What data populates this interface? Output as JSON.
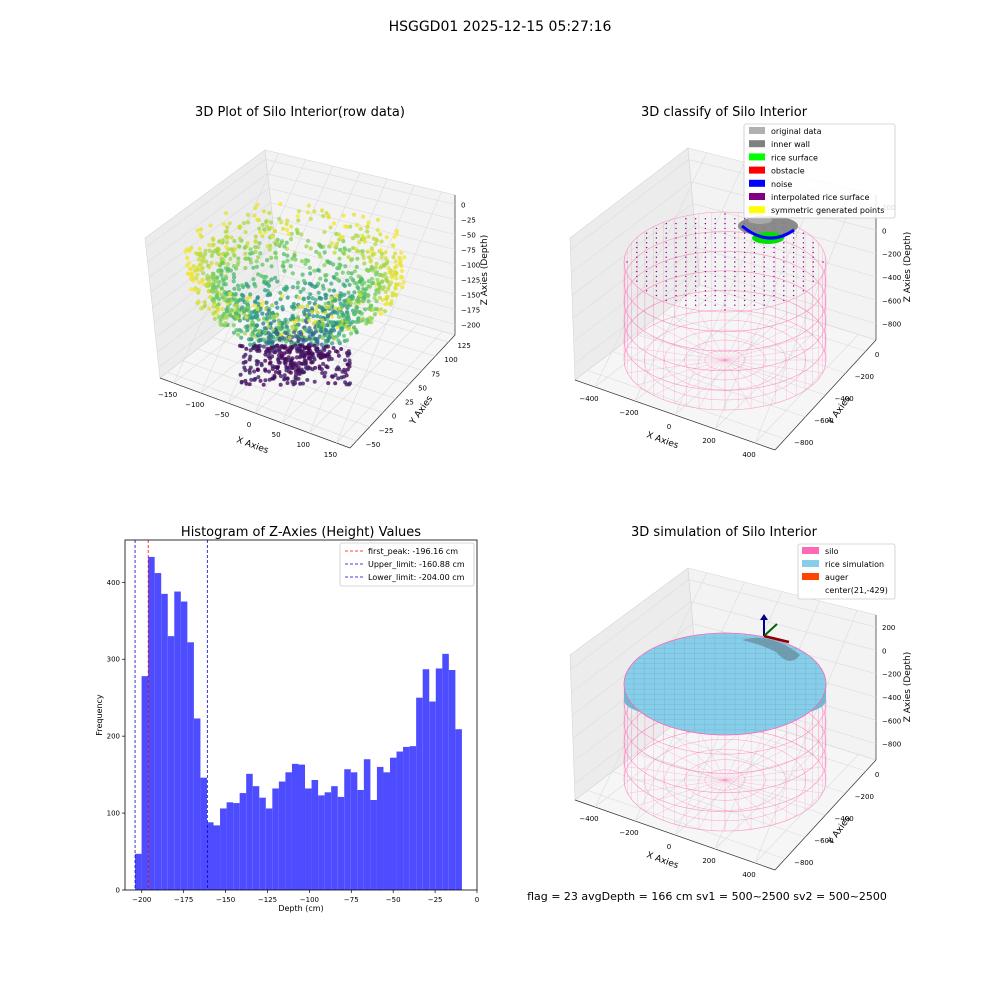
{
  "figure": {
    "suptitle": "HSGGD01 2025-12-15 05:27:16",
    "footer": "flag = 23  avgDepth = 166 cm  sv1 = 500~2500  sv2 = 500~2500"
  },
  "chart_data": [
    {
      "type": "scatter",
      "title": "3D Plot of Silo Interior(row data)",
      "xlabel": "X Axies",
      "ylabel": "Y Axies",
      "zlabel": "Z Axies (Depth)",
      "xticks": [
        "−150",
        "−100",
        "−50",
        "0",
        "50",
        "100",
        "150"
      ],
      "yticks": [
        "−50",
        "−25",
        "0",
        "25",
        "50",
        "75",
        "100",
        "125"
      ],
      "zticks": [
        "0",
        "−25",
        "−50",
        "−75",
        "−100",
        "−125",
        "−150",
        "−175",
        "−200"
      ],
      "colormap": "viridis",
      "grid": true
    },
    {
      "type": "scatter",
      "title": "3D classify of Silo Interior",
      "xlabel": "X Axies",
      "ylabel": "Y Axies",
      "zlabel": "Z Axies (Depth)",
      "xticks": [
        "−400",
        "−200",
        "0",
        "200",
        "400"
      ],
      "yticks": [
        "−800",
        "−600",
        "−400",
        "−200",
        "0"
      ],
      "zticks": [
        "200",
        "0",
        "−200",
        "−400",
        "−600",
        "−800"
      ],
      "legend_position": "top-right",
      "legend": [
        {
          "label": "original data",
          "color": "#b0b0b0"
        },
        {
          "label": "inner wall",
          "color": "#808080"
        },
        {
          "label": "rice surface",
          "color": "#00ff00"
        },
        {
          "label": "obstacle",
          "color": "#ff0000"
        },
        {
          "label": "noise",
          "color": "#0000ff"
        },
        {
          "label": "interpolated rice surface",
          "color": "#800080"
        },
        {
          "label": "symmetric generated points",
          "color": "#ffff00"
        }
      ],
      "grid": true
    },
    {
      "type": "bar",
      "title": "Histogram of Z-Axies (Height) Values",
      "xlabel": "Depth (cm)",
      "ylabel": "Frequency",
      "xlim": [
        -210,
        0
      ],
      "ylim": [
        0,
        455
      ],
      "bin_start": -204,
      "bin_width": 3.9,
      "bar_color": "#4d4dff",
      "values": [
        47,
        278,
        433,
        412,
        385,
        330,
        388,
        375,
        322,
        223,
        146,
        88,
        84,
        106,
        114,
        113,
        126,
        151,
        135,
        120,
        106,
        132,
        141,
        153,
        164,
        163,
        132,
        143,
        123,
        127,
        135,
        121,
        157,
        153,
        130,
        170,
        117,
        160,
        153,
        172,
        180,
        186,
        187,
        250,
        287,
        245,
        288,
        307,
        286,
        209
      ],
      "xticks": [
        -200,
        -175,
        -150,
        -125,
        -100,
        -75,
        -50,
        -25,
        0
      ],
      "xtick_labels": [
        "−200",
        "−175",
        "−150",
        "−125",
        "−100",
        "−75",
        "−50",
        "−25",
        "0"
      ],
      "yticks": [
        0,
        100,
        200,
        300,
        400
      ],
      "vlines": [
        {
          "x": -196.16,
          "color": "#ff0000",
          "label": "first_peak: -196.16 cm"
        },
        {
          "x": -160.88,
          "color": "#0000cc",
          "label": "Upper_limit: -160.88 cm"
        },
        {
          "x": -204.0,
          "color": "#0000cc",
          "label": "Lower_limit: -204.00 cm"
        }
      ],
      "legend_position": "top-right"
    },
    {
      "type": "scatter",
      "title": "3D simulation of Silo Interior",
      "xlabel": "X Axies",
      "ylabel": "Y Axies",
      "zlabel": "Z Axies (Depth)",
      "xticks": [
        "−400",
        "−200",
        "0",
        "200",
        "400"
      ],
      "yticks": [
        "−800",
        "−600",
        "−400",
        "−200",
        "0"
      ],
      "zticks": [
        "200",
        "0",
        "−200",
        "−400",
        "−600",
        "−800"
      ],
      "legend_position": "top-right",
      "legend": [
        {
          "label": "silo",
          "color": "#ff69b4"
        },
        {
          "label": "rice simulation",
          "color": "#87ceeb"
        },
        {
          "label": "auger",
          "color": "#ff4500"
        },
        {
          "label": "center(21,-429)",
          "color": ""
        }
      ],
      "grid": true
    }
  ]
}
